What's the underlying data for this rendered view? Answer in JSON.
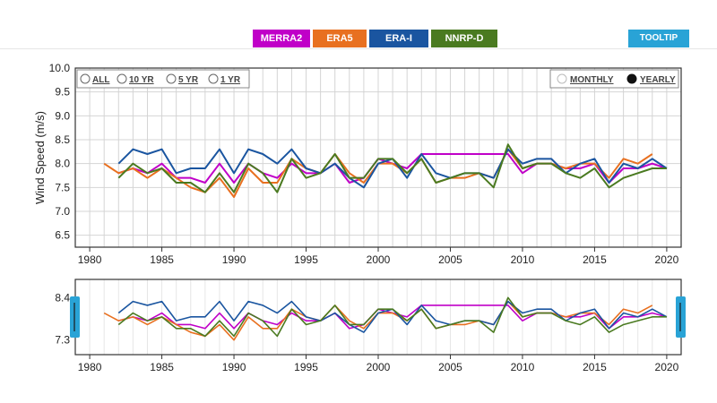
{
  "legend": [
    {
      "name": "MERRA2",
      "color": "#c000c8"
    },
    {
      "name": "ERA5",
      "color": "#e87020"
    },
    {
      "name": "ERA-I",
      "color": "#1a55a0"
    },
    {
      "name": "NNRP-D",
      "color": "#4a7a20"
    }
  ],
  "tooltip_label": "TOOLTIP",
  "range_options": [
    "ALL",
    "10 YR",
    "5 YR",
    "1 YR"
  ],
  "period_options": [
    {
      "label": "MONTHLY",
      "selected": false
    },
    {
      "label": "YEARLY",
      "selected": true
    }
  ],
  "chart_data": {
    "type": "line",
    "ylabel": "Wind Speed (m/s)",
    "xlabel": "",
    "xlim": [
      1979,
      2021
    ],
    "ylim": [
      6.25,
      10.0
    ],
    "xticks": [
      1980,
      1985,
      1990,
      1995,
      2000,
      2005,
      2010,
      2015,
      2020
    ],
    "yticks": [
      "6.5",
      "7.0",
      "7.5",
      "8.0",
      "8.5",
      "9.0",
      "9.5",
      "10.0"
    ],
    "navigator_yticks": [
      "8.4",
      "7.3"
    ],
    "series": [
      {
        "name": "MERRA2",
        "color": "#c000c8",
        "x": [
          1982,
          1983,
          1984,
          1985,
          1986,
          1987,
          1988,
          1989,
          1990,
          1991,
          1992,
          1993,
          1994,
          1995,
          1996,
          1997,
          1998,
          1999,
          2000,
          2001,
          2002,
          2003,
          2009,
          2010,
          2011,
          2012,
          2013,
          2014,
          2015,
          2016,
          2017,
          2018,
          2019,
          2020
        ],
        "values": [
          7.8,
          7.9,
          7.8,
          8.0,
          7.7,
          7.7,
          7.6,
          8.0,
          7.6,
          8.0,
          7.8,
          7.7,
          8.0,
          7.8,
          7.8,
          8.0,
          7.6,
          7.7,
          8.1,
          8.0,
          7.9,
          8.2,
          8.2,
          7.8,
          8.0,
          8.0,
          7.9,
          7.9,
          8.0,
          7.6,
          7.9,
          7.9,
          8.0,
          7.9
        ]
      },
      {
        "name": "ERA5",
        "color": "#e87020",
        "x": [
          1981,
          1982,
          1983,
          1984,
          1985,
          1986,
          1987,
          1988,
          1989,
          1990,
          1991,
          1992,
          1993,
          1994,
          1995,
          1996,
          1997,
          1998,
          1999,
          2000,
          2001,
          2002,
          2003,
          2004,
          2005,
          2006,
          2007,
          2008,
          2009,
          2010,
          2011,
          2012,
          2013,
          2014,
          2015,
          2016,
          2017,
          2018,
          2019
        ],
        "values": [
          8.0,
          7.8,
          7.9,
          7.7,
          7.9,
          7.7,
          7.5,
          7.4,
          7.7,
          7.3,
          7.9,
          7.6,
          7.6,
          8.1,
          7.9,
          7.8,
          8.2,
          7.8,
          7.6,
          8.0,
          8.0,
          7.8,
          8.1,
          7.6,
          7.7,
          7.7,
          7.8,
          7.7,
          8.3,
          7.9,
          8.0,
          8.0,
          7.9,
          8.0,
          8.0,
          7.7,
          8.1,
          8.0,
          8.2
        ]
      },
      {
        "name": "ERA-I",
        "color": "#1a55a0",
        "x": [
          1982,
          1983,
          1984,
          1985,
          1986,
          1987,
          1988,
          1989,
          1990,
          1991,
          1992,
          1993,
          1994,
          1995,
          1996,
          1997,
          1998,
          1999,
          2000,
          2001,
          2002,
          2003,
          2004,
          2005,
          2006,
          2007,
          2008,
          2009,
          2010,
          2011,
          2012,
          2013,
          2014,
          2015,
          2016,
          2017,
          2018,
          2019,
          2020
        ],
        "values": [
          8.0,
          8.3,
          8.2,
          8.3,
          7.8,
          7.9,
          7.9,
          8.3,
          7.8,
          8.3,
          8.2,
          8.0,
          8.3,
          7.9,
          7.8,
          8.0,
          7.7,
          7.5,
          8.0,
          8.1,
          7.7,
          8.2,
          7.8,
          7.7,
          7.8,
          7.8,
          7.7,
          8.3,
          8.0,
          8.1,
          8.1,
          7.8,
          8.0,
          8.1,
          7.6,
          8.0,
          7.9,
          8.1,
          7.9
        ]
      },
      {
        "name": "NNRP-D",
        "color": "#4a7a20",
        "x": [
          1982,
          1983,
          1984,
          1985,
          1986,
          1987,
          1988,
          1989,
          1990,
          1991,
          1992,
          1993,
          1994,
          1995,
          1996,
          1997,
          1998,
          1999,
          2000,
          2001,
          2002,
          2003,
          2004,
          2005,
          2006,
          2007,
          2008,
          2009,
          2010,
          2011,
          2012,
          2013,
          2014,
          2015,
          2016,
          2017,
          2018,
          2019,
          2020
        ],
        "values": [
          7.7,
          8.0,
          7.8,
          7.9,
          7.6,
          7.6,
          7.4,
          7.8,
          7.4,
          8.0,
          7.8,
          7.4,
          8.1,
          7.7,
          7.8,
          8.2,
          7.7,
          7.7,
          8.1,
          8.1,
          7.8,
          8.1,
          7.6,
          7.7,
          7.8,
          7.8,
          7.5,
          8.4,
          7.9,
          8.0,
          8.0,
          7.8,
          7.7,
          7.9,
          7.5,
          7.7,
          7.8,
          7.9,
          7.9
        ]
      }
    ]
  }
}
